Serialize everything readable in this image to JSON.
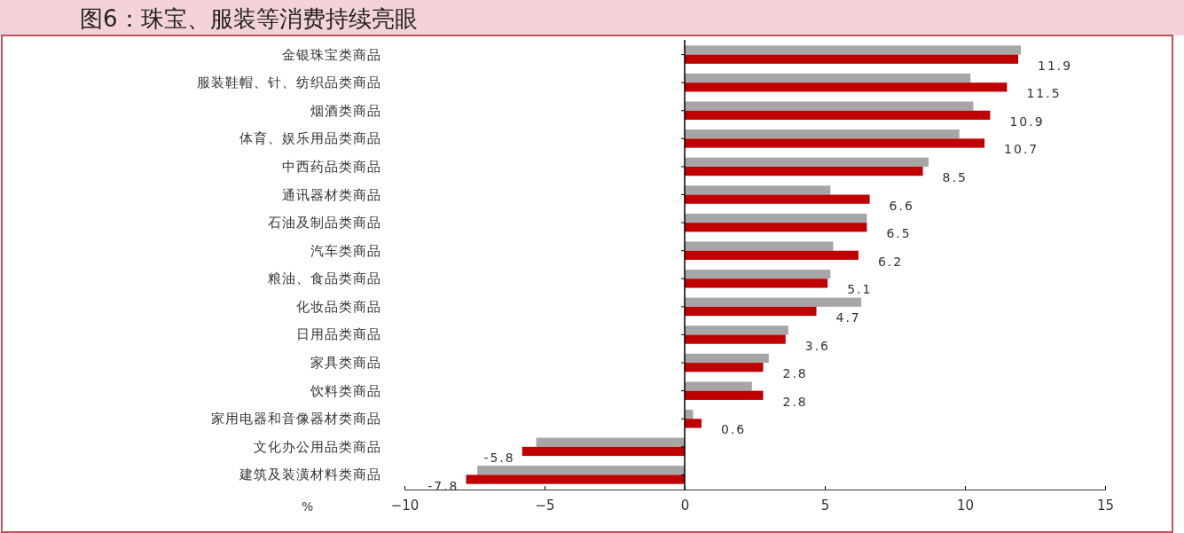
{
  "chart_data": {
    "type": "bar",
    "orientation": "horizontal",
    "title": "图6：珠宝、服装等消费持续亮眼",
    "xlabel": "%",
    "categories": [
      "金银珠宝类商品",
      "服装鞋帽、针、纺织品类商品",
      "烟酒类商品",
      "体育、娱乐用品类商品",
      "中西药品类商品",
      "通讯器材类商品",
      "石油及制品类商品",
      "汽车类商品",
      "粮油、食品类商品",
      "化妆品类商品",
      "日用品类商品",
      "家具类商品",
      "饮料类商品",
      "家用电器和音像器材类商品",
      "文化办公用品类商品",
      "建筑及装潢材料类商品"
    ],
    "series": [
      {
        "color": "#a6a6a6",
        "values": [
          12.0,
          10.2,
          10.3,
          9.8,
          8.7,
          5.2,
          6.5,
          5.3,
          5.2,
          6.3,
          3.7,
          3.0,
          2.4,
          0.3,
          -5.3,
          -7.4
        ]
      },
      {
        "color": "#c00000",
        "values": [
          11.9,
          11.5,
          10.9,
          10.7,
          8.5,
          6.6,
          6.5,
          6.2,
          5.1,
          4.7,
          3.6,
          2.8,
          2.8,
          0.6,
          -5.8,
          -7.8
        ],
        "value_labels": [
          "11.9",
          "11.5",
          "10.9",
          "10.7",
          "8.5",
          "6.6",
          "6.5",
          "6.2",
          "5.1",
          "4.7",
          "3.6",
          "2.8",
          "2.8",
          "0.6",
          "-5.8",
          "-7.8"
        ]
      }
    ],
    "xlim": [
      -10,
      15
    ],
    "xticks": [
      {
        "value": -10,
        "label": "−10"
      },
      {
        "value": -5,
        "label": "−5"
      },
      0,
      5,
      10,
      15
    ],
    "grid": false,
    "ref_lines": [
      {
        "axis": "x",
        "value": 0,
        "color": "#000000"
      }
    ]
  }
}
